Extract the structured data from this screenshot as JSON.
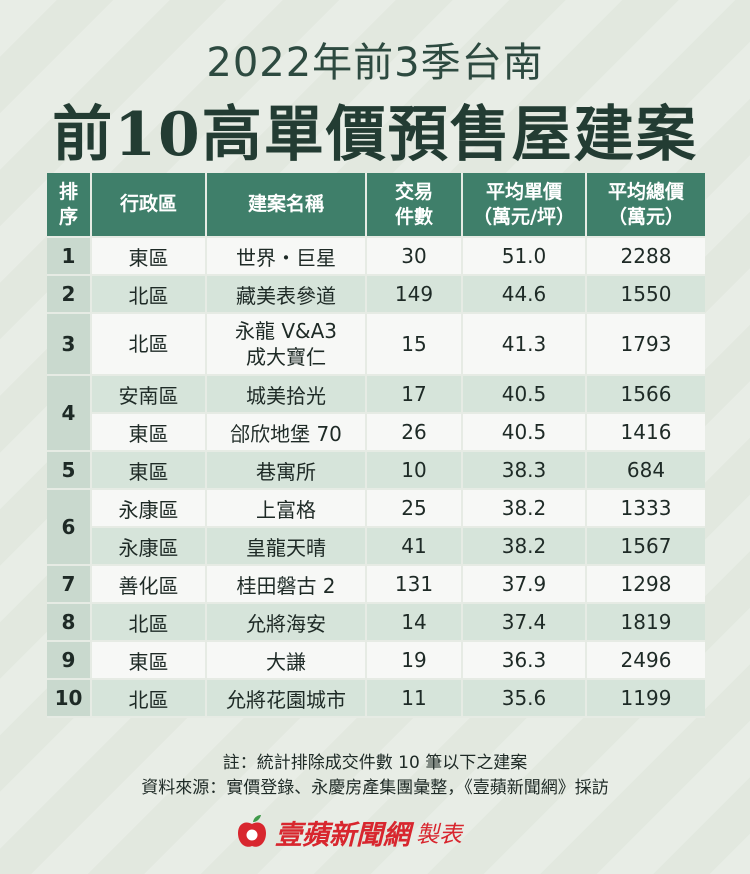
{
  "title_line1": "2022年前3季台南",
  "title_line2": "前10高單價預售屋建案",
  "headers": {
    "rank": [
      "排",
      "序"
    ],
    "district": "行政區",
    "name": "建案名稱",
    "units": [
      "交易",
      "件數"
    ],
    "unit_price": [
      "平均單價",
      "（萬元/坪）"
    ],
    "total_price": [
      "平均總價",
      "（萬元）"
    ]
  },
  "rows": [
    {
      "rank": "1",
      "district": "東區",
      "name": "世界・巨星",
      "units": "30",
      "unit_price": "51.0",
      "total_price": "2288"
    },
    {
      "rank": "2",
      "district": "北區",
      "name": "藏美表參道",
      "units": "149",
      "unit_price": "44.6",
      "total_price": "1550"
    },
    {
      "rank": "3",
      "district": "北區",
      "name": [
        "永龍 V&A3",
        "成大寶仁"
      ],
      "units": "15",
      "unit_price": "41.3",
      "total_price": "1793"
    },
    {
      "rank": "4",
      "district": "安南區",
      "name": "城美拾光",
      "units": "17",
      "unit_price": "40.5",
      "total_price": "1566"
    },
    {
      "rank": "",
      "district": "東區",
      "name": "郃欣地堡 70",
      "units": "26",
      "unit_price": "40.5",
      "total_price": "1416"
    },
    {
      "rank": "5",
      "district": "東區",
      "name": "巷寓所",
      "units": "10",
      "unit_price": "38.3",
      "total_price": "684"
    },
    {
      "rank": "6",
      "district": "永康區",
      "name": "上富格",
      "units": "25",
      "unit_price": "38.2",
      "total_price": "1333"
    },
    {
      "rank": "",
      "district": "永康區",
      "name": "皇龍天晴",
      "units": "41",
      "unit_price": "38.2",
      "total_price": "1567"
    },
    {
      "rank": "7",
      "district": "善化區",
      "name": "桂田磐古 2",
      "units": "131",
      "unit_price": "37.9",
      "total_price": "1298"
    },
    {
      "rank": "8",
      "district": "北區",
      "name": "允將海安",
      "units": "14",
      "unit_price": "37.4",
      "total_price": "1819"
    },
    {
      "rank": "9",
      "district": "東區",
      "name": "大謙",
      "units": "19",
      "unit_price": "36.3",
      "total_price": "2496"
    },
    {
      "rank": "10",
      "district": "北區",
      "name": "允將花園城市",
      "units": "11",
      "unit_price": "35.6",
      "total_price": "1199"
    }
  ],
  "note": "註：統計排除成交件數 10 筆以下之建案",
  "source": "資料來源：實價登錄、永慶房產集團彙整，《壹蘋新聞網》採訪",
  "brand": {
    "name": "壹蘋新聞網",
    "suffix": "製表",
    "color": "#d8262e"
  },
  "colors": {
    "header_bg": "#3f7f6a",
    "title": "#233c33"
  }
}
